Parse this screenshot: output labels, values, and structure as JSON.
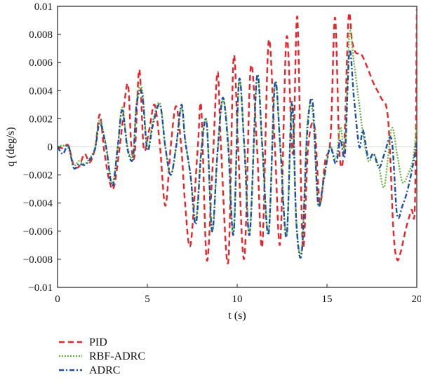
{
  "chart_data": {
    "type": "line",
    "title": "",
    "xlabel": "t (s)",
    "ylabel": "q (deg/s)",
    "xlim": [
      0,
      20
    ],
    "ylim": [
      -0.01,
      0.01
    ],
    "xticks": [
      0,
      5,
      10,
      15,
      20
    ],
    "xtick_labels": [
      "0",
      "5",
      "10",
      "15",
      "20"
    ],
    "yticks": [
      -0.01,
      -0.008,
      -0.006,
      -0.004,
      -0.002,
      0,
      0.002,
      0.004,
      0.006,
      0.008,
      0.01
    ],
    "ytick_labels": [
      "−0.01",
      "−0.008",
      "−0.006",
      "−0.004",
      "−0.002",
      "0",
      "0.002",
      "0.004",
      "0.006",
      "0.008",
      "0.01"
    ],
    "grid": false,
    "legend_position": "bottom-left, below plot",
    "series": [
      {
        "name": "PID",
        "color": "#e8242b",
        "dash": "dashed",
        "x": [
          0,
          0.3,
          0.6,
          0.9,
          1.2,
          1.5,
          1.8,
          2.1,
          2.35,
          2.6,
          2.9,
          3.15,
          3.5,
          3.9,
          4.1,
          4.3,
          4.55,
          4.8,
          5.1,
          5.4,
          5.7,
          6.0,
          6.3,
          6.6,
          6.9,
          7.1,
          7.4,
          7.8,
          8.0,
          8.3,
          8.6,
          8.9,
          9.1,
          9.5,
          9.8,
          10.05,
          10.4,
          10.75,
          11.1,
          11.4,
          11.75,
          12.1,
          12.4,
          12.75,
          13.1,
          13.35,
          13.65,
          13.95,
          14.3,
          14.6,
          14.9,
          15.2,
          15.45,
          15.7,
          15.95,
          16.2,
          16.4,
          16.6,
          16.9,
          17.2,
          17.6,
          18.0,
          18.4,
          18.7,
          18.9,
          19.1,
          19.4,
          19.7,
          19.9,
          20.0
        ],
        "y": [
          0.0,
          -0.0001,
          0.0001,
          -0.0013,
          -0.0014,
          -0.0005,
          -0.0011,
          0.0,
          0.0023,
          -0.0003,
          -0.0025,
          -0.0028,
          0.0004,
          0.0045,
          0.0002,
          -0.0005,
          0.0055,
          -0.0001,
          0.0012,
          0.003,
          0.0001,
          -0.0042,
          0.0,
          0.0029,
          -0.0002,
          -0.004,
          -0.007,
          -0.0002,
          0.0028,
          -0.008,
          -0.0022,
          0.0053,
          0.0,
          -0.0082,
          0.0063,
          0.0,
          -0.0079,
          0.0056,
          0.0001,
          -0.007,
          0.0075,
          0.0,
          -0.0068,
          0.0078,
          -0.0005,
          0.0092,
          -0.007,
          0.0,
          0.0015,
          -0.004,
          -0.001,
          0.0007,
          0.0092,
          -0.0005,
          0.0,
          0.0092,
          0.0075,
          0.0067,
          0.0066,
          0.0058,
          0.0045,
          0.0035,
          0.002,
          -0.006,
          -0.008,
          -0.0075,
          -0.0058,
          -0.0045,
          -0.004,
          0.0098
        ]
      },
      {
        "name": "RBF-ADRC",
        "color": "#5ab134",
        "dash": "dotted",
        "x": [
          0,
          0.3,
          0.6,
          0.9,
          1.2,
          1.5,
          1.8,
          2.1,
          2.35,
          2.7,
          3.05,
          3.35,
          3.6,
          3.9,
          4.2,
          4.4,
          4.7,
          5.0,
          5.3,
          5.7,
          6.0,
          6.3,
          6.6,
          6.9,
          7.1,
          7.4,
          7.7,
          8.0,
          8.3,
          8.6,
          8.9,
          9.2,
          9.5,
          9.8,
          10.1,
          10.4,
          10.7,
          11.1,
          11.4,
          11.75,
          12.1,
          12.4,
          12.75,
          13.05,
          13.3,
          13.6,
          13.9,
          14.2,
          14.5,
          14.8,
          15.0,
          15.2,
          15.5,
          15.75,
          16.0,
          16.25,
          16.5,
          16.8,
          17.0,
          17.3,
          17.6,
          17.9,
          18.2,
          18.6,
          18.9,
          19.2,
          19.5,
          19.8,
          20.0
        ],
        "y": [
          0.0,
          0.0001,
          -0.0001,
          -0.0013,
          -0.001,
          -0.0012,
          -0.0008,
          0.0,
          0.0019,
          0.0001,
          -0.0026,
          0.0,
          0.0028,
          0.0,
          -0.0006,
          0.0032,
          0.0042,
          0.0,
          0.0018,
          0.0031,
          0.0,
          -0.002,
          0.0,
          0.0028,
          0.0006,
          -0.002,
          -0.0052,
          -0.0003,
          0.0018,
          -0.006,
          -0.0005,
          0.0033,
          0.0005,
          -0.0062,
          0.0046,
          0.0,
          -0.006,
          0.0049,
          0.0,
          -0.006,
          0.0044,
          0.0,
          -0.0062,
          0.0028,
          -0.0055,
          -0.0072,
          0.0015,
          0.0025,
          -0.004,
          -0.0025,
          -0.001,
          0.0,
          -0.0008,
          0.0014,
          0.0,
          0.008,
          0.006,
          0.003,
          0.001,
          -0.001,
          -0.0005,
          -0.0015,
          -0.0028,
          0.0013,
          -0.0005,
          -0.0025,
          -0.002,
          -0.0008,
          0.0016
        ]
      },
      {
        "name": "ADRC",
        "color": "#1a4fa3",
        "dash": "dash-dot",
        "x": [
          0,
          0.3,
          0.6,
          0.9,
          1.2,
          1.5,
          1.8,
          2.1,
          2.35,
          2.7,
          3.05,
          3.35,
          3.6,
          3.9,
          4.2,
          4.4,
          4.7,
          5.0,
          5.3,
          5.7,
          6.0,
          6.3,
          6.6,
          6.9,
          7.1,
          7.4,
          7.7,
          8.0,
          8.3,
          8.6,
          8.9,
          9.2,
          9.5,
          9.8,
          10.1,
          10.4,
          10.7,
          11.1,
          11.4,
          11.75,
          12.1,
          12.4,
          12.75,
          13.05,
          13.3,
          13.6,
          13.9,
          14.2,
          14.5,
          14.8,
          15.0,
          15.2,
          15.5,
          15.75,
          16.0,
          16.25,
          16.5,
          16.8,
          17.0,
          17.3,
          17.6,
          17.9,
          18.2,
          18.6,
          18.9,
          19.2,
          19.5,
          19.8,
          20.0
        ],
        "y": [
          0.0,
          -0.0005,
          0.0001,
          -0.0015,
          -0.0012,
          -0.0013,
          -0.0009,
          -0.0001,
          0.0017,
          0.0,
          -0.0028,
          0.0,
          0.0026,
          -0.0002,
          -0.0008,
          0.003,
          0.0038,
          -0.0002,
          0.0015,
          0.003,
          0.0,
          -0.002,
          0.0,
          0.003,
          0.0005,
          -0.002,
          -0.0055,
          -0.0004,
          0.0017,
          -0.006,
          -0.0005,
          0.0035,
          0.0,
          -0.0062,
          0.0047,
          0.0,
          -0.0062,
          0.005,
          0.0,
          -0.0062,
          0.0045,
          0.0,
          -0.0064,
          0.0032,
          -0.0055,
          -0.0075,
          0.001,
          0.0032,
          -0.004,
          -0.0025,
          -0.001,
          0.0,
          -0.0012,
          0.0005,
          -0.0005,
          0.0068,
          0.0035,
          0.0,
          0.0012,
          -0.0008,
          -0.0005,
          -0.0015,
          -0.0005,
          0.0005,
          -0.0048,
          -0.0042,
          -0.003,
          -0.0012,
          0.0003
        ]
      }
    ]
  }
}
